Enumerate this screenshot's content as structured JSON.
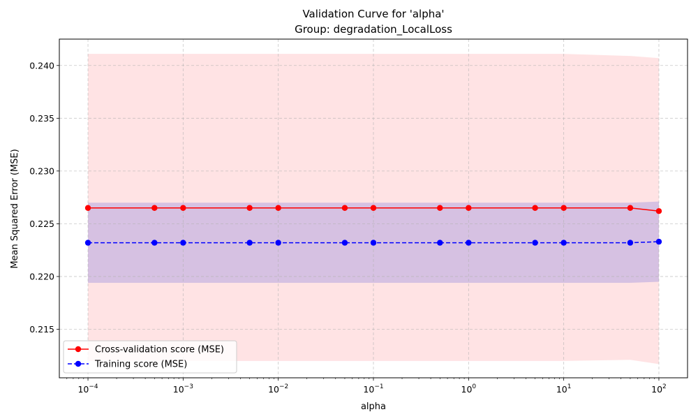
{
  "chart_data": {
    "type": "line",
    "title": "Validation Curve for 'alpha'",
    "subtitle": "Group: degradation_LocalLoss",
    "xlabel": "alpha",
    "ylabel": "Mean Squared Error (MSE)",
    "xscale": "log",
    "xlim": [
      5e-05,
      200
    ],
    "ylim": [
      0.2104,
      0.2425
    ],
    "grid": true,
    "legend_position": "lower-left",
    "x": [
      0.0001,
      0.0005,
      0.001,
      0.005,
      0.01,
      0.05,
      0.1,
      0.5,
      1,
      5,
      10,
      50,
      100
    ],
    "x_ticks": [
      0.0001,
      0.001,
      0.01,
      0.1,
      1,
      10,
      100
    ],
    "x_tick_labels": [
      {
        "base": "10",
        "exp": "−4"
      },
      {
        "base": "10",
        "exp": "−3"
      },
      {
        "base": "10",
        "exp": "−2"
      },
      {
        "base": "10",
        "exp": "−1"
      },
      {
        "base": "10",
        "exp": "0"
      },
      {
        "base": "10",
        "exp": "1"
      },
      {
        "base": "10",
        "exp": "2"
      }
    ],
    "y_ticks": [
      0.215,
      0.22,
      0.225,
      0.23,
      0.235,
      0.24
    ],
    "y_tick_labels": [
      "0.215",
      "0.220",
      "0.225",
      "0.230",
      "0.235",
      "0.240"
    ],
    "series": [
      {
        "name": "Cross-validation score (MSE)",
        "color": "#ff0000",
        "linestyle": "solid",
        "marker": "circle",
        "values": [
          0.2265,
          0.2265,
          0.2265,
          0.2265,
          0.2265,
          0.2265,
          0.2265,
          0.2265,
          0.2265,
          0.2265,
          0.2265,
          0.2265,
          0.2262
        ],
        "band_lower": [
          0.212,
          0.212,
          0.212,
          0.212,
          0.212,
          0.212,
          0.212,
          0.212,
          0.212,
          0.212,
          0.212,
          0.2121,
          0.2117
        ],
        "band_upper": [
          0.2411,
          0.2411,
          0.2411,
          0.2411,
          0.2411,
          0.2411,
          0.2411,
          0.2411,
          0.2411,
          0.2411,
          0.2411,
          0.2409,
          0.2407
        ],
        "band_color": "#ffc0c4"
      },
      {
        "name": "Training score (MSE)",
        "color": "#0000ff",
        "linestyle": "dashed",
        "marker": "circle",
        "values": [
          0.2232,
          0.2232,
          0.2232,
          0.2232,
          0.2232,
          0.2232,
          0.2232,
          0.2232,
          0.2232,
          0.2232,
          0.2232,
          0.2232,
          0.2233
        ],
        "band_lower": [
          0.2194,
          0.2194,
          0.2194,
          0.2194,
          0.2194,
          0.2194,
          0.2194,
          0.2194,
          0.2194,
          0.2194,
          0.2194,
          0.2194,
          0.2195
        ],
        "band_upper": [
          0.227,
          0.227,
          0.227,
          0.227,
          0.227,
          0.227,
          0.227,
          0.227,
          0.227,
          0.227,
          0.227,
          0.227,
          0.2271
        ],
        "band_color": "#b4a6e0"
      }
    ]
  }
}
